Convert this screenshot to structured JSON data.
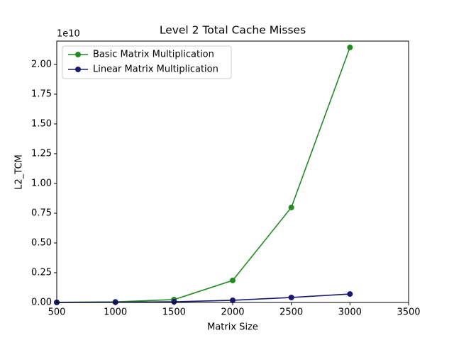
{
  "chart_data": {
    "type": "line",
    "title": "Level 2 Total Cache Misses",
    "xlabel": "Matrix Size",
    "ylabel": "L2_TCM",
    "y_offset_text": "1e10",
    "x": [
      500,
      1000,
      1500,
      2000,
      2500,
      3000
    ],
    "series": [
      {
        "name": "Basic Matrix Multiplication",
        "color": "#228b22",
        "values": [
          0.001,
          0.005,
          0.024,
          0.185,
          0.798,
          2.143
        ]
      },
      {
        "name": "Linear Matrix Multiplication",
        "color": "#191970",
        "values": [
          0.0003,
          0.002,
          0.006,
          0.018,
          0.042,
          0.071
        ]
      }
    ],
    "xlim": [
      500,
      3500
    ],
    "xticks": [
      500,
      1000,
      1500,
      2000,
      2500,
      3000,
      3500
    ],
    "ylim": [
      0,
      2.196
    ],
    "yticks": [
      {
        "value": 0,
        "label": "0.00"
      },
      {
        "value": 0.25,
        "label": "0.25"
      },
      {
        "value": 0.5,
        "label": "0.50"
      },
      {
        "value": 0.75,
        "label": "0.75"
      },
      {
        "value": 1,
        "label": "1.00"
      },
      {
        "value": 1.25,
        "label": "1.25"
      },
      {
        "value": 1.5,
        "label": "1.50"
      },
      {
        "value": 1.75,
        "label": "1.75"
      },
      {
        "value": 2,
        "label": "2.00"
      }
    ],
    "legend": "upper left"
  }
}
